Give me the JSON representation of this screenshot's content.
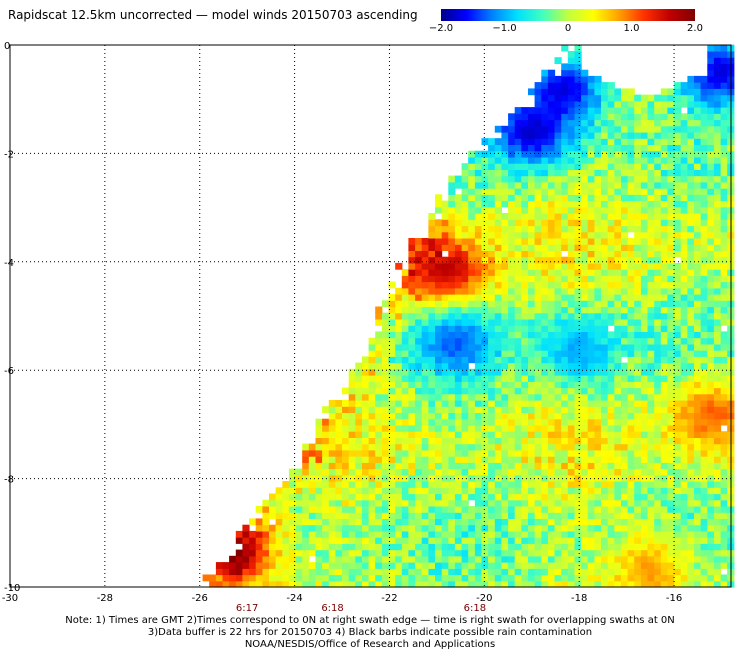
{
  "title": "Rapidscat 12.5km uncorrected — model winds 20150703 ascending",
  "colorbar": {
    "ticks": [
      "−2.0",
      "−1.0",
      "0",
      "1.0",
      "2.0"
    ],
    "tick_values": [
      -2.0,
      -1.0,
      0,
      1.0,
      2.0
    ],
    "colors": [
      "#00008b",
      "#0000ff",
      "#0080ff",
      "#00e0ff",
      "#40ffc0",
      "#c0ff40",
      "#ffff00",
      "#ffa000",
      "#ff3000",
      "#c00000",
      "#800000"
    ]
  },
  "chart_data": {
    "type": "heatmap",
    "title": "Rapidscat 12.5km uncorrected — model winds 20150703 ascending",
    "xlabel": "",
    "ylabel": "",
    "xlim": [
      -30,
      -14.8
    ],
    "ylim": [
      -10,
      0
    ],
    "x_ticks": [
      -30,
      -28,
      -26,
      -24,
      -22,
      -20,
      -18,
      -16
    ],
    "x_tick_labels": [
      "-30",
      "-28",
      "-26",
      "-24",
      "-22",
      "-20",
      "-18",
      "-16"
    ],
    "y_ticks": [
      0,
      -2,
      -4,
      -6,
      -8,
      -10
    ],
    "y_tick_labels": [
      "0",
      "-2",
      "-4",
      "-6",
      "-8",
      "-10"
    ],
    "grid": true,
    "value_range": [
      -2.0,
      2.0
    ],
    "swath_left_edge": [
      [
        -25.9,
        -10
      ],
      [
        -24.2,
        -8
      ],
      [
        -22.7,
        -6
      ],
      [
        -21.8,
        -4.3
      ],
      [
        -20.5,
        -2.2
      ],
      [
        -19.2,
        -1.2
      ],
      [
        -18.2,
        0
      ]
    ],
    "features": [
      {
        "x": -18.3,
        "y": -0.8,
        "value": -2.0
      },
      {
        "x": -19.0,
        "y": -1.6,
        "value": -2.0
      },
      {
        "x": -15.0,
        "y": -0.5,
        "value": -2.0
      },
      {
        "x": -20.8,
        "y": -4.2,
        "value": 2.0
      },
      {
        "x": -25.2,
        "y": -9.4,
        "value": 2.0
      },
      {
        "x": -20.6,
        "y": -5.5,
        "value": -1.5
      },
      {
        "x": -18.0,
        "y": -5.6,
        "value": -1.2
      },
      {
        "x": -15.2,
        "y": -6.8,
        "value": 1.2
      },
      {
        "x": -16.5,
        "y": -9.7,
        "value": 1.0
      }
    ]
  },
  "time_labels": [
    {
      "text": "6:17",
      "x": -25.0
    },
    {
      "text": "6:18",
      "x": -23.2
    },
    {
      "text": "6:18",
      "x": -20.2
    }
  ],
  "notes": {
    "line1": "Note: 1) Times are GMT 2)Times correspond to 0N at right swath edge — time is right swath for overlapping swaths at 0N",
    "line2": "3)Data buffer is 22 hrs for 20150703 4) Black barbs indicate possible rain contamination",
    "line3": "NOAA/NESDIS/Office of Research and Applications"
  }
}
